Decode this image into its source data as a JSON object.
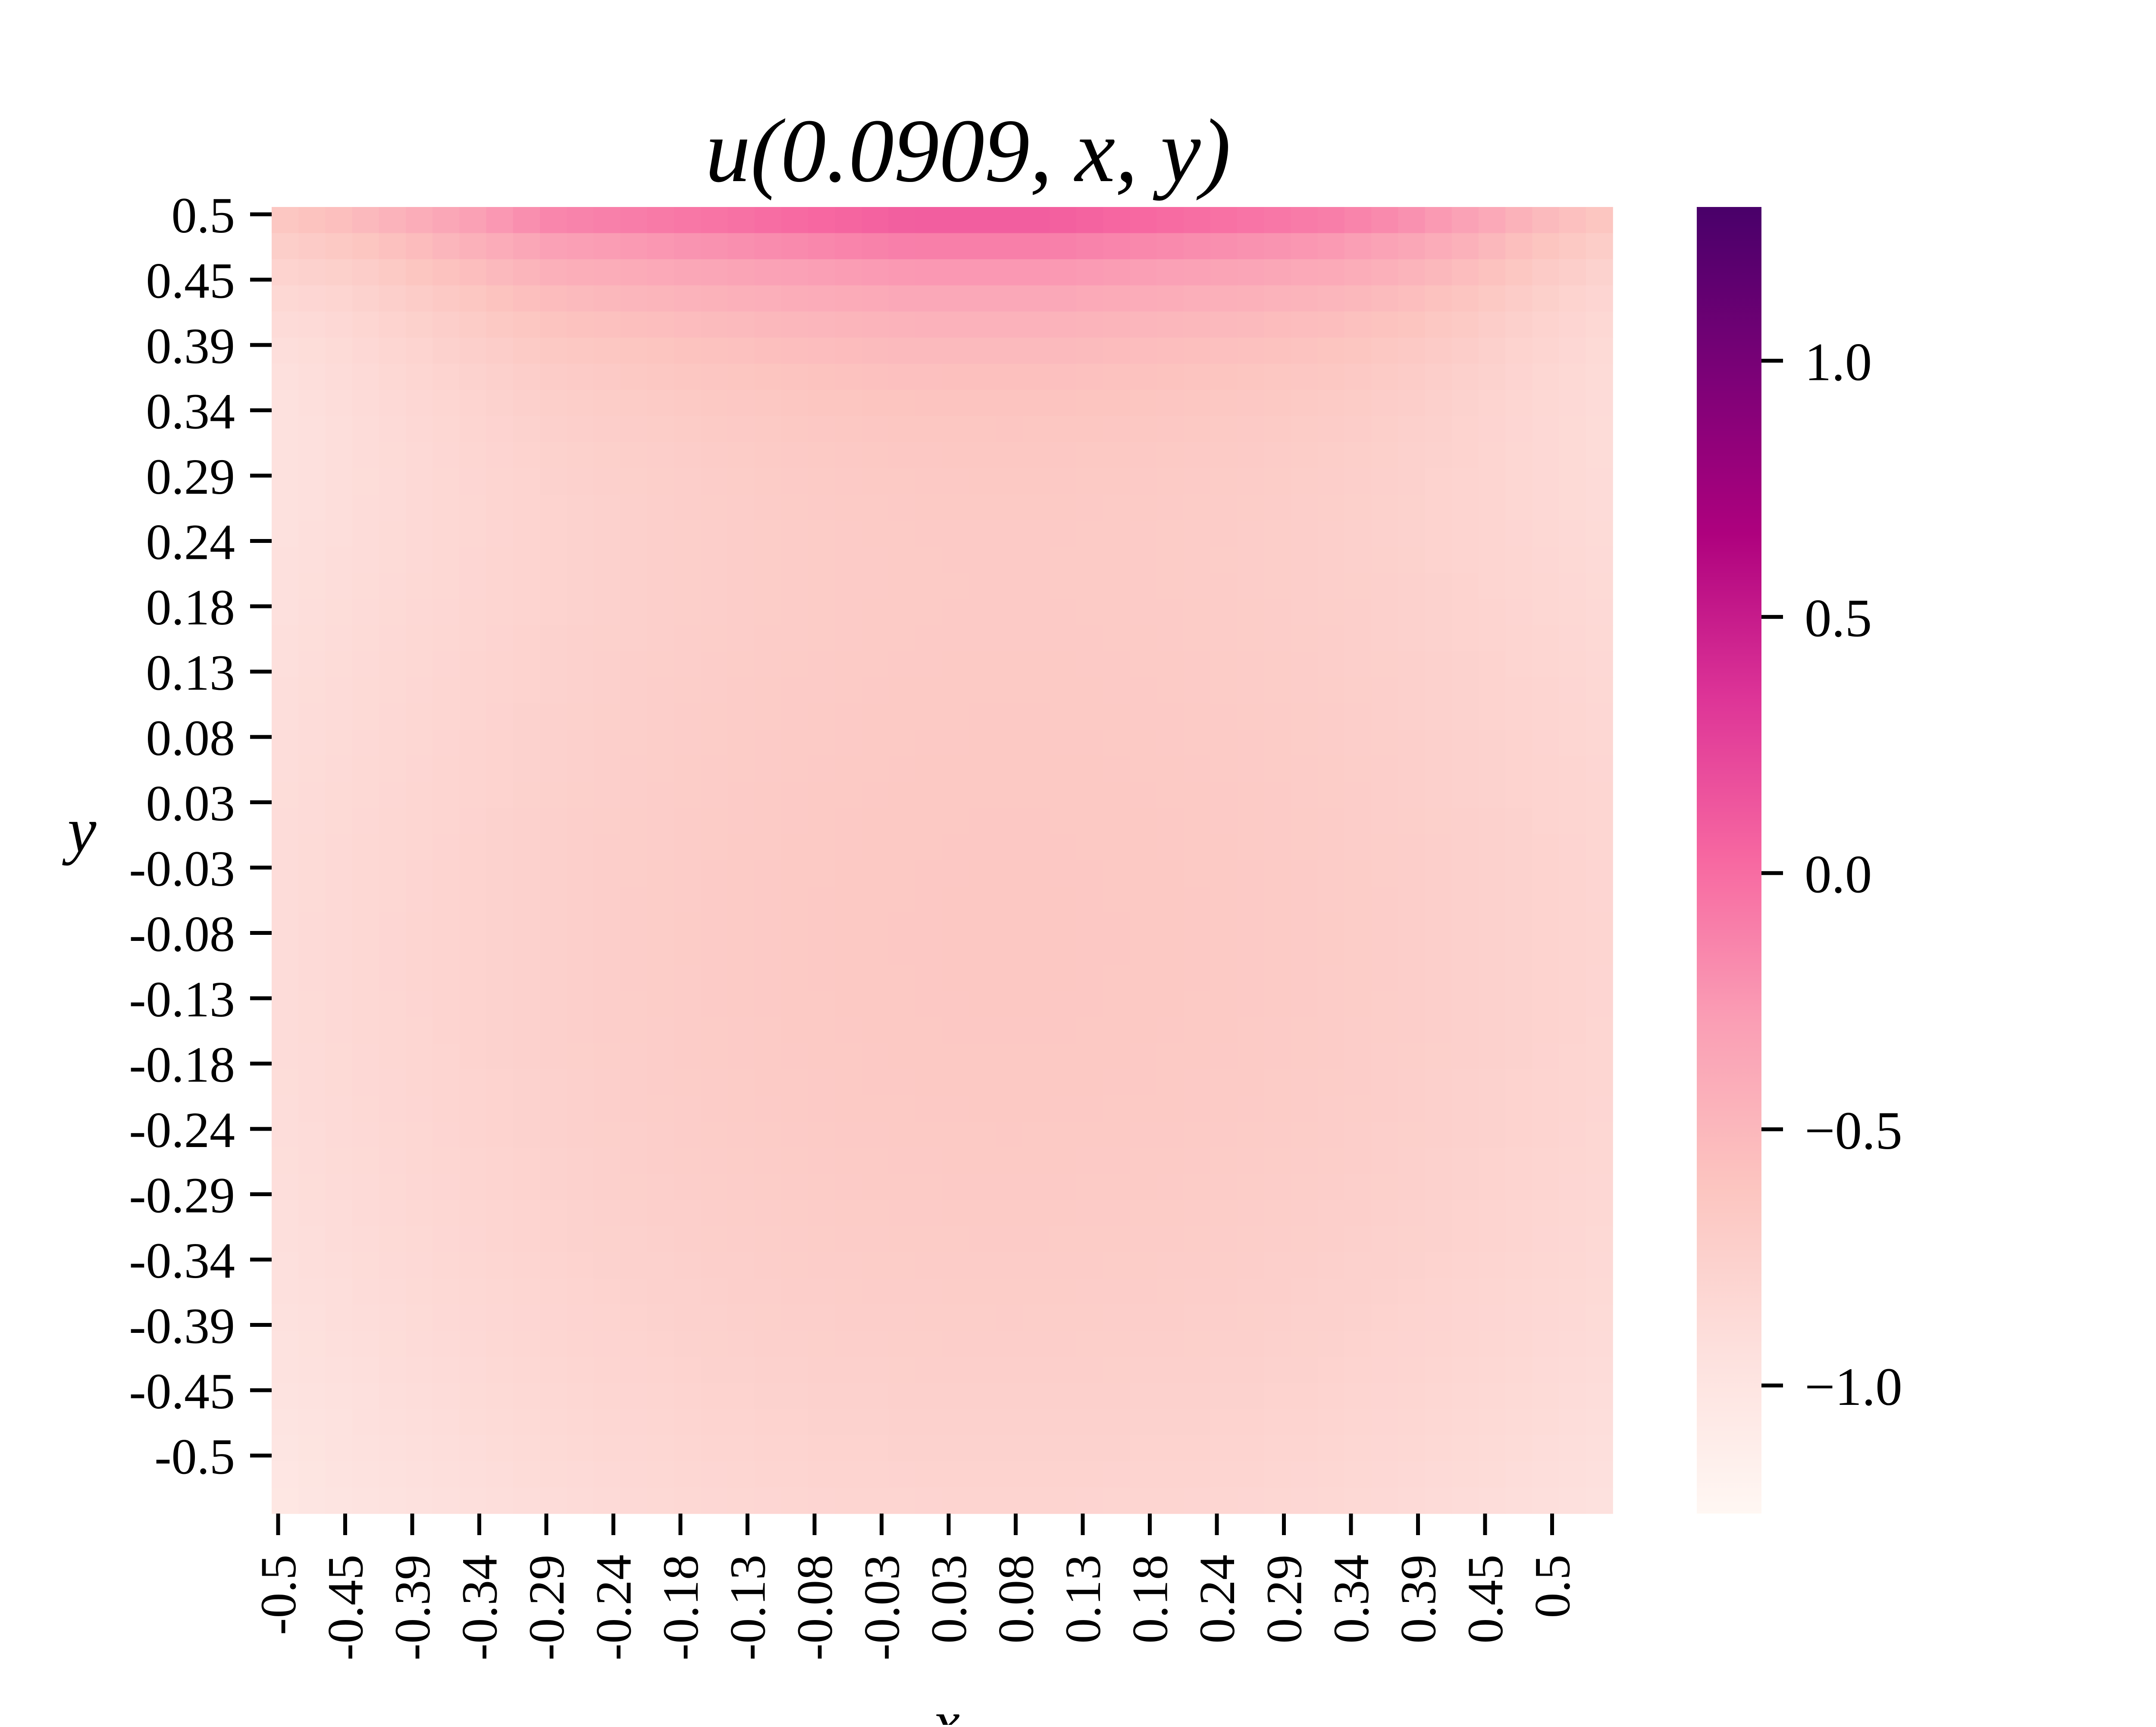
{
  "chart_data": {
    "type": "heatmap",
    "title": "u(0.0909, x, y)",
    "xlabel": "x",
    "ylabel": "y",
    "x_tick_labels": [
      "-0.5",
      "-0.45",
      "-0.39",
      "-0.34",
      "-0.29",
      "-0.24",
      "-0.18",
      "-0.13",
      "-0.08",
      "-0.03",
      "0.03",
      "0.08",
      "0.13",
      "0.18",
      "0.24",
      "0.29",
      "0.34",
      "0.39",
      "0.45",
      "0.5"
    ],
    "y_tick_labels": [
      "0.5",
      "0.45",
      "0.39",
      "0.34",
      "0.29",
      "0.24",
      "0.18",
      "0.13",
      "0.08",
      "0.03",
      "-0.03",
      "-0.08",
      "-0.13",
      "-0.18",
      "-0.24",
      "-0.29",
      "-0.34",
      "-0.39",
      "-0.45",
      "-0.5"
    ],
    "colorbar": {
      "range": [
        -1.25,
        1.3
      ],
      "ticks": [
        1.0,
        0.5,
        0.0,
        -0.5,
        -1.0
      ],
      "tick_labels": [
        "1.0",
        "0.5",
        "0.0",
        "−0.5",
        "−1.0"
      ],
      "colormap": "RdPu",
      "colors": [
        "#fff7f3",
        "#fde0dd",
        "#fcc5c0",
        "#fa9fb5",
        "#f768a1",
        "#dd3497",
        "#ae017e",
        "#7a0177",
        "#49006a"
      ]
    },
    "grid": false,
    "legend": "none",
    "values_top_row": [
      -0.6,
      -0.5,
      -0.35,
      -0.2,
      -0.05,
      0.0,
      0.05,
      0.1,
      0.15,
      0.2,
      0.2,
      0.2,
      0.15,
      0.1,
      0.05,
      0.0,
      -0.1,
      -0.25,
      -0.45,
      -0.6
    ],
    "values_center": -0.65,
    "values_corners": -1.05
  }
}
